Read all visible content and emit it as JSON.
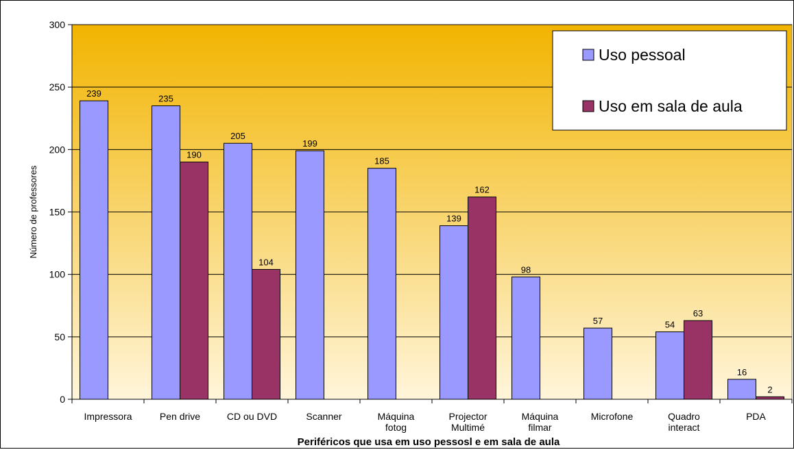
{
  "chart_data": {
    "type": "bar",
    "title": "",
    "xlabel": "Periféricos que usa em uso pessosl e em sala de aula",
    "ylabel": "Número de professores",
    "ylim": [
      0,
      300
    ],
    "yticks": [
      0,
      50,
      100,
      150,
      200,
      250,
      300
    ],
    "grid": true,
    "legend_position": "top-right",
    "categories": [
      [
        "Impressora"
      ],
      [
        "Pen drive"
      ],
      [
        "CD ou DVD"
      ],
      [
        "Scanner"
      ],
      [
        "Máquina",
        "fotog"
      ],
      [
        "Projector",
        "Multimé"
      ],
      [
        "Máquina",
        "filmar"
      ],
      [
        "Microfone"
      ],
      [
        "Quadro",
        "interact"
      ],
      [
        "PDA"
      ]
    ],
    "series": [
      {
        "name": "Uso pessoal",
        "color": "#9999FF",
        "values": [
          239,
          235,
          205,
          199,
          185,
          139,
          98,
          57,
          54,
          16
        ]
      },
      {
        "name": "Uso em sala de aula",
        "color": "#993366",
        "values": [
          null,
          190,
          104,
          null,
          null,
          162,
          null,
          null,
          63,
          2
        ]
      }
    ],
    "background_gradient": [
      "#F2B400",
      "#FFF5DA"
    ]
  }
}
